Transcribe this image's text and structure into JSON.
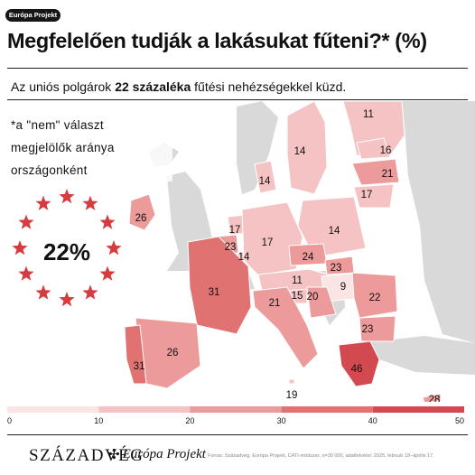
{
  "badge": "Európa Projekt",
  "title": "Megfelelően tudják a lakásukat fűteni?* (%)",
  "subtitle": {
    "before": "Az uniós polgárok ",
    "highlight": "22 százaléka",
    "after": " fűtési nehézségekkel küzd."
  },
  "note_lines": [
    "*a \"nem\" választ",
    "megjelölők aránya",
    "országonként"
  ],
  "eu_average": "22%",
  "brands": {
    "szazadveg": "SZÁZADVÉG",
    "europa": "Európa Projekt"
  },
  "source": "Forrás: Századvég, Európa Projekt, CATI-módszer, n=30 000, adatfelvétel: 2025. február 18–április 17.",
  "colors": {
    "scale": [
      "#fbe4e4",
      "#f5c3c3",
      "#ec9a9a",
      "#e07272",
      "#d2494f"
    ],
    "non_eu": "#d9d9d9",
    "stars": "#d63b3f",
    "sea": "#ffffff"
  },
  "chart_data": {
    "type": "choropleth",
    "title": "Megfelelően tudják a lakásukat fűteni?* (%)",
    "legend_scale": {
      "min": 0,
      "max": 50,
      "ticks": [
        0,
        10,
        20,
        30,
        40,
        50
      ]
    },
    "regions": [
      {
        "label": "Finnország",
        "value": 11
      },
      {
        "label": "Svédország",
        "value": 14
      },
      {
        "label": "Észtország",
        "value": 16
      },
      {
        "label": "Lettország",
        "value": 21
      },
      {
        "label": "Litvánia",
        "value": 17
      },
      {
        "label": "Dánia",
        "value": 14
      },
      {
        "label": "Írország",
        "value": 26
      },
      {
        "label": "Hollandia",
        "value": 17
      },
      {
        "label": "Belgium",
        "value": 23
      },
      {
        "label": "Luxemburg",
        "value": 14
      },
      {
        "label": "Németország",
        "value": 17
      },
      {
        "label": "Lengyelország",
        "value": 14
      },
      {
        "label": "Csehország",
        "value": 24
      },
      {
        "label": "Szlovákia",
        "value": 23
      },
      {
        "label": "Ausztria",
        "value": 11
      },
      {
        "label": "Magyarország",
        "value": 9
      },
      {
        "label": "Franciaország",
        "value": 31
      },
      {
        "label": "Szlovénia",
        "value": 15
      },
      {
        "label": "Horvátország",
        "value": 20
      },
      {
        "label": "Románia",
        "value": 22
      },
      {
        "label": "Olaszország",
        "value": 21
      },
      {
        "label": "Bulgária",
        "value": 23
      },
      {
        "label": "Spanyolország",
        "value": 26
      },
      {
        "label": "Portugália",
        "value": 31
      },
      {
        "label": "Görögország",
        "value": 46
      },
      {
        "label": "Málta",
        "value": 19
      },
      {
        "label": "Ciprus",
        "value": 28
      }
    ]
  }
}
